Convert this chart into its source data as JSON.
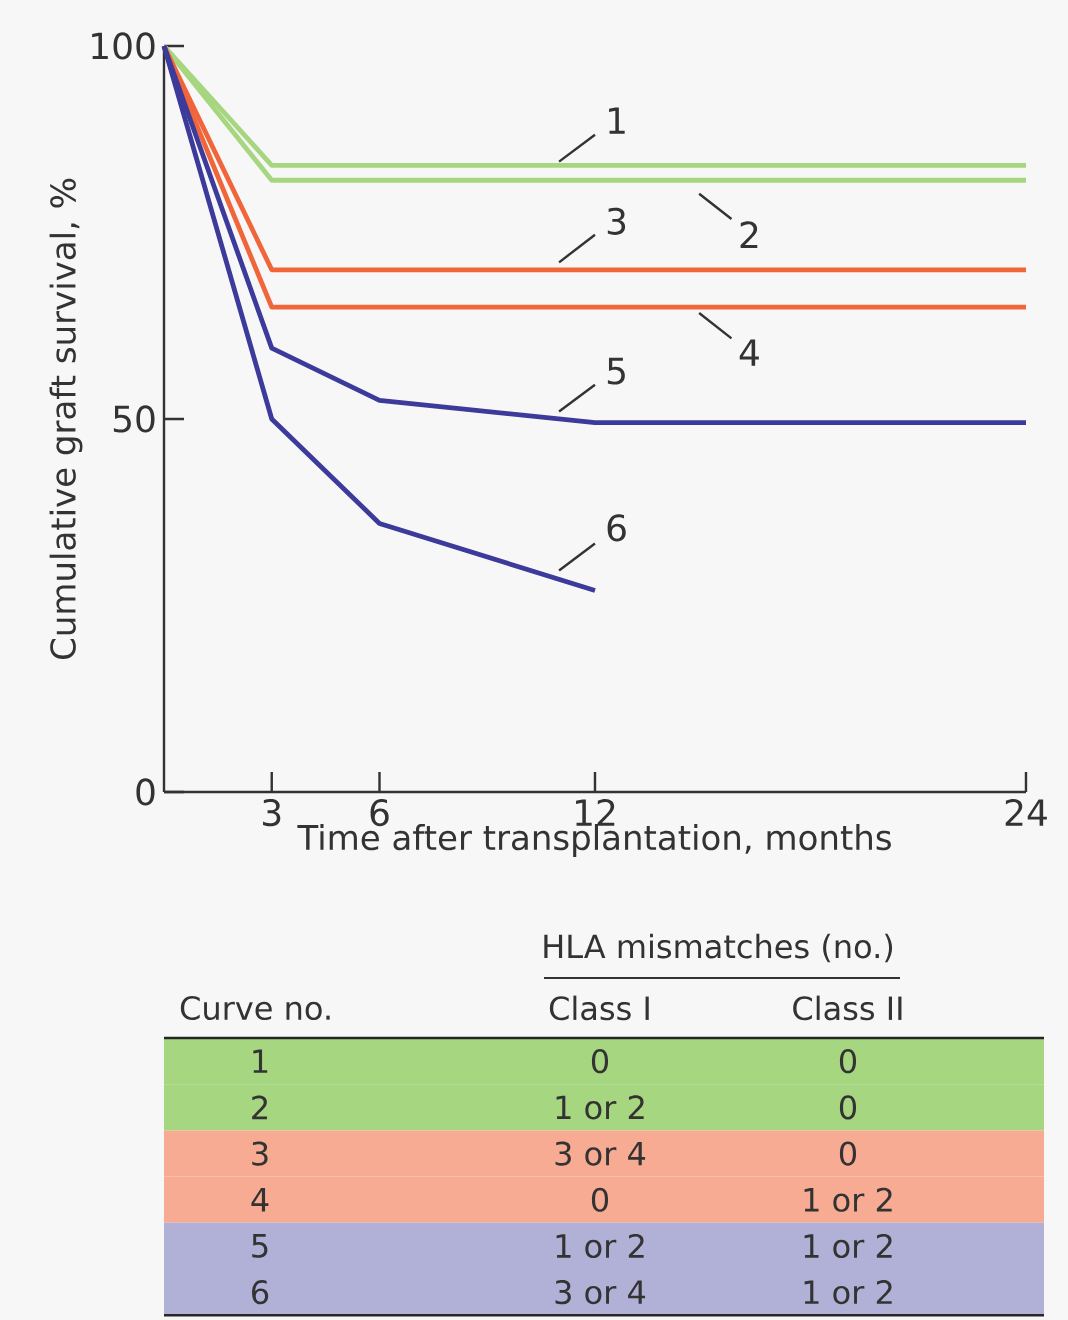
{
  "chart_data": {
    "type": "line",
    "xlabel": "Time after transplantation, months",
    "ylabel": "Cumulative graft survival, %",
    "xlim": [
      0,
      24
    ],
    "ylim": [
      0,
      100
    ],
    "xticks": [
      3,
      6,
      12,
      24
    ],
    "yticks": [
      0,
      50,
      100
    ],
    "marker": "none",
    "line_style": "solid",
    "series": [
      {
        "name": "1",
        "color": "#a6d67f",
        "x": [
          0,
          3,
          24
        ],
        "values": [
          100,
          84,
          84
        ]
      },
      {
        "name": "2",
        "color": "#a6d67f",
        "x": [
          0,
          3,
          24
        ],
        "values": [
          100,
          82,
          82
        ]
      },
      {
        "name": "3",
        "color": "#f0663a",
        "x": [
          0,
          3,
          24
        ],
        "values": [
          100,
          70,
          70
        ]
      },
      {
        "name": "4",
        "color": "#f0663a",
        "x": [
          0,
          3,
          24
        ],
        "values": [
          100,
          65,
          65
        ]
      },
      {
        "name": "5",
        "color": "#3c3a9a",
        "x": [
          0,
          3,
          6,
          12,
          24
        ],
        "values": [
          100,
          59.5,
          52.5,
          49.5,
          49.5
        ]
      },
      {
        "name": "6",
        "color": "#3c3a9a",
        "x": [
          0,
          3,
          6,
          12
        ],
        "values": [
          100,
          50,
          36,
          27
        ]
      }
    ],
    "annotations": [
      "HLA mismatches (no.)",
      "Curve no.",
      "Class I",
      "Class II",
      "0",
      "0",
      "1 or 2",
      "0",
      "3 or 4",
      "0",
      "0",
      "1 or 2",
      "1 or 2",
      "1 or 2",
      "3 or 4",
      "1 or 2"
    ]
  }
}
